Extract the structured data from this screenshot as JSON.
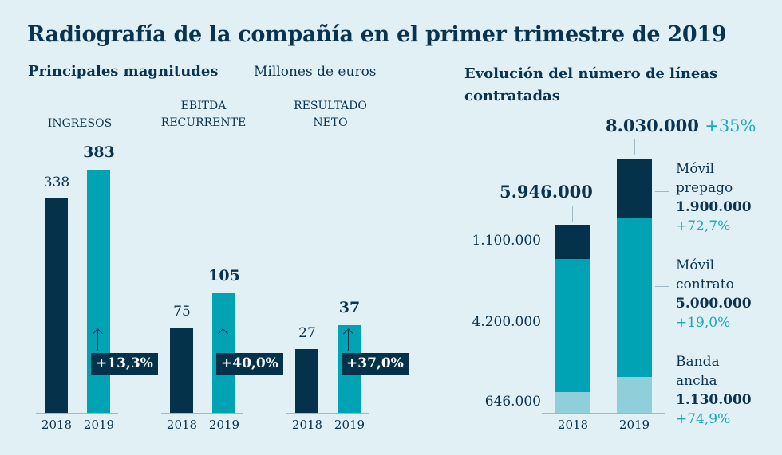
{
  "title": "Radiografía de la compañía en el primer trimestre de 2019",
  "left": {
    "subtitle": "Principales magnitudes",
    "unit": "Millones de euros"
  },
  "right": {
    "subtitle_line1": "Evolución del número de líneas",
    "subtitle_line2": "contratadas"
  },
  "colors": {
    "dark": "#04324b",
    "teal": "#00a3b4",
    "light": "#8fcfd9",
    "background": "#e1f0f4",
    "accent_text": "#1aa9b5"
  },
  "chart_data": [
    {
      "type": "bar",
      "title": "INGRESOS",
      "categories": [
        "2018",
        "2019"
      ],
      "values": [
        338,
        383
      ],
      "value_labels": [
        "338",
        "383"
      ],
      "change": "+13,3%"
    },
    {
      "type": "bar",
      "title_line1": "EBITDA",
      "title_line2": "RECURRENTE",
      "categories": [
        "2018",
        "2019"
      ],
      "values": [
        75,
        105
      ],
      "value_labels": [
        "75",
        "105"
      ],
      "change": "+40,0%"
    },
    {
      "type": "bar",
      "title_line1": "RESULTADO",
      "title_line2": "NETO",
      "categories": [
        "2018",
        "2019"
      ],
      "values": [
        27,
        37
      ],
      "value_labels": [
        "27",
        "37"
      ],
      "change": "+37,0%"
    },
    {
      "type": "bar",
      "stacked": true,
      "categories": [
        "2018",
        "2019"
      ],
      "totals": [
        5946000,
        8030000
      ],
      "total_labels": [
        "5.946.000",
        "8.030.000"
      ],
      "total_change": "+35%",
      "series": [
        {
          "name": "Banda ancha",
          "name_line1": "Banda",
          "name_line2": "ancha",
          "values": [
            646000,
            1130000
          ],
          "labels": [
            "646.000",
            "1.130.000"
          ],
          "change": "+74,9%"
        },
        {
          "name": "Móvil contrato",
          "name_line1": "Móvil",
          "name_line2": "contrato",
          "values": [
            4200000,
            5000000
          ],
          "labels": [
            "4.200.000",
            "5.000.000"
          ],
          "change": "+19,0%"
        },
        {
          "name": "Móvil prepago",
          "name_line1": "Móvil",
          "name_line2": "prepago",
          "values": [
            1100000,
            1900000
          ],
          "labels": [
            "1.100.000",
            "1.900.000"
          ],
          "change": "+72,7%"
        }
      ]
    }
  ]
}
